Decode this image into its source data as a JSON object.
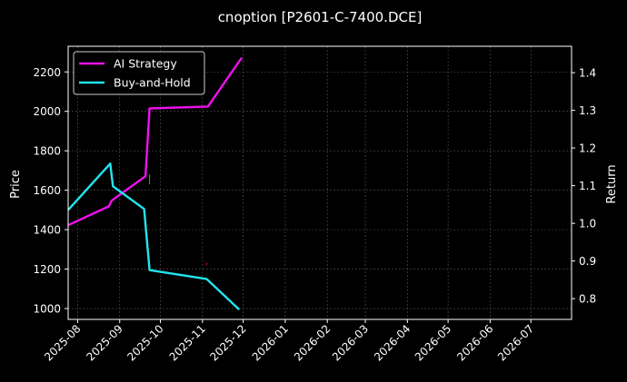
{
  "chart_data": {
    "type": "line",
    "title": "cnoption [P2601-C-7400.DCE]",
    "ylabel": "Price",
    "y2label": "Return",
    "x_ticks": [
      "2025-08",
      "2025-09",
      "2025-10",
      "2025-11",
      "2025-12",
      "2026-01",
      "2026-02",
      "2026-03",
      "2026-04",
      "2026-05",
      "2026-06",
      "2026-07"
    ],
    "xlim": [
      "2025-07-25",
      "2026-07-31"
    ],
    "ylim": [
      945,
      2330
    ],
    "y_ticks": [
      1000,
      1200,
      1400,
      1600,
      1800,
      2000,
      2200
    ],
    "y2lim": [
      0.745,
      1.47
    ],
    "y2_ticks": [
      0.8,
      0.9,
      1.0,
      1.1,
      1.2,
      1.3,
      1.4
    ],
    "grid": true,
    "legend_position": "top-left",
    "series": [
      {
        "name": "AI Strategy",
        "axis": "right",
        "color": "#ee11ee",
        "points": [
          [
            "2025-07-25",
            0.995
          ],
          [
            "2025-08-24",
            1.045
          ],
          [
            "2025-08-26",
            1.06
          ],
          [
            "2025-09-20",
            1.125
          ],
          [
            "2025-09-23",
            1.305
          ],
          [
            "2025-11-05",
            1.31
          ],
          [
            "2025-11-30",
            1.44
          ]
        ]
      },
      {
        "name": "Buy-and-Hold",
        "axis": "left",
        "color": "#22e5f0",
        "points": [
          [
            "2025-07-25",
            1500
          ],
          [
            "2025-08-25",
            1735
          ],
          [
            "2025-08-27",
            1620
          ],
          [
            "2025-09-19",
            1505
          ],
          [
            "2025-09-23",
            1195
          ],
          [
            "2025-11-04",
            1150
          ],
          [
            "2025-11-28",
            995
          ]
        ]
      }
    ],
    "markers": [
      {
        "type": "buy",
        "color": "#22bb22",
        "date": "2025-09-23",
        "price_range": [
          1630,
          1680
        ]
      },
      {
        "type": "sell",
        "color": "#dd2222",
        "date": "2025-11-04",
        "price_range": [
          1220,
          1232
        ]
      }
    ]
  }
}
